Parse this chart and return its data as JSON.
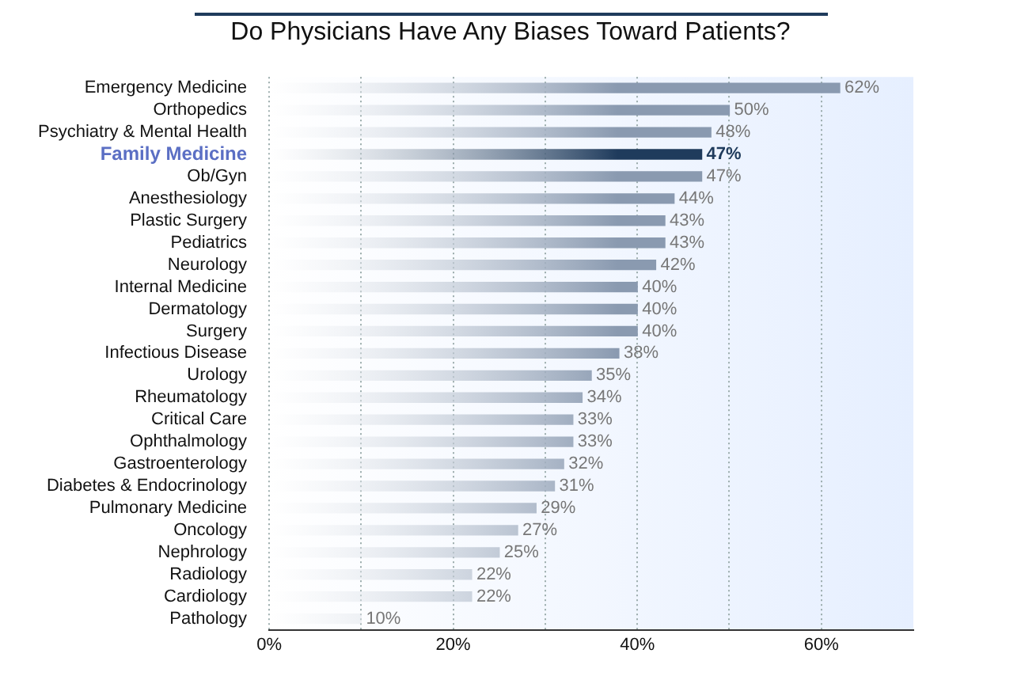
{
  "chart_data": {
    "type": "bar",
    "orientation": "horizontal",
    "title": "Do Physicians Have Any Biases Toward Patients?",
    "categories": [
      "Emergency Medicine",
      "Orthopedics",
      "Psychiatry & Mental Health",
      "Family Medicine",
      "Ob/Gyn",
      "Anesthesiology",
      "Plastic Surgery",
      "Pediatrics",
      "Neurology",
      "Internal Medicine",
      "Dermatology",
      "Surgery",
      "Infectious Disease",
      "Urology",
      "Rheumatology",
      "Critical Care",
      "Ophthalmology",
      "Gastroenterology",
      "Diabetes & Endocrinology",
      "Pulmonary Medicine",
      "Oncology",
      "Nephrology",
      "Radiology",
      "Cardiology",
      "Pathology"
    ],
    "values": [
      62,
      50,
      48,
      47,
      47,
      44,
      43,
      43,
      42,
      40,
      40,
      40,
      38,
      35,
      34,
      33,
      33,
      32,
      31,
      29,
      27,
      25,
      22,
      22,
      10
    ],
    "value_labels": [
      "62%",
      "50%",
      "48%",
      "47%",
      "47%",
      "44%",
      "43%",
      "43%",
      "42%",
      "40%",
      "40%",
      "40%",
      "38%",
      "35%",
      "34%",
      "33%",
      "33%",
      "32%",
      "31%",
      "29%",
      "27%",
      "25%",
      "22%",
      "22%",
      "10%"
    ],
    "colors": [
      "#8a9ab0",
      "#8a9ab0",
      "#8a9ab0",
      "#1f3b5c",
      "#8a9ab0",
      "#8a9ab0",
      "#8a9ab0",
      "#8a9ab0",
      "#8a9ab0",
      "#8a9ab0",
      "#8a9ab0",
      "#8a9ab0",
      "#8a9ab0",
      "#8a9ab0",
      "#8a9ab0",
      "#8a9ab0",
      "#8a9ab0",
      "#8a9ab0",
      "#8a9ab0",
      "#8a9ab0",
      "#8a9ab0",
      "#8a9ab0",
      "#8a9ab0",
      "#8a9ab0",
      "#8a9ab0"
    ],
    "xlim": [
      0,
      70
    ],
    "xticks": [
      {
        "value": 0,
        "label": "0%"
      },
      {
        "value": 10,
        "label": null
      },
      {
        "value": 20,
        "label": "20%"
      },
      {
        "value": 30,
        "label": null
      },
      {
        "value": 40,
        "label": "40%"
      },
      {
        "value": 50,
        "label": null
      },
      {
        "value": 60,
        "label": "60%"
      }
    ],
    "grid": "x",
    "legend": false
  }
}
